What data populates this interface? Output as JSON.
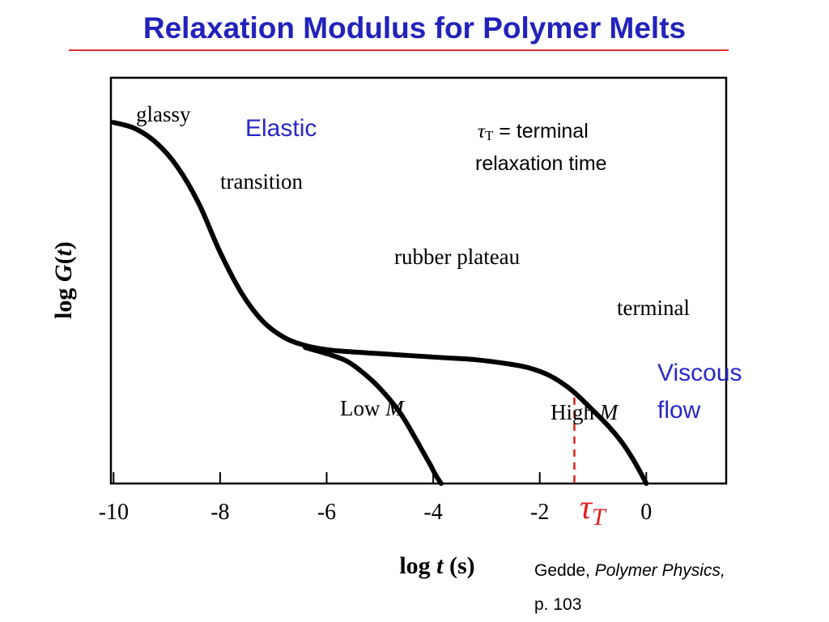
{
  "slide": {
    "title": "Relaxation Modulus for Polymer Melts",
    "title_color": "#2222bb",
    "rule_color": "#e03030",
    "citation": {
      "author": "Gedde, ",
      "book": "Polymer Physics,",
      "page": "p. 103"
    }
  },
  "chart_data": {
    "type": "line",
    "title": "",
    "xlabel": "log t (s)",
    "ylabel": "log G(t)",
    "xlim": [
      -10.05,
      1.5
    ],
    "ylim": [
      0,
      10
    ],
    "x_ticks": [
      -10,
      -8,
      -6,
      -4,
      -2,
      0
    ],
    "x_tick_labels": [
      "-10",
      "-8",
      "-6",
      "-4",
      "-2",
      "0"
    ],
    "series": [
      {
        "name": "High M",
        "x": [
          -10.0,
          -9.6,
          -9.2,
          -8.8,
          -8.4,
          -8.0,
          -7.6,
          -7.2,
          -6.8,
          -6.4,
          -6.0,
          -5.6,
          -5.0,
          -4.4,
          -3.8,
          -3.2,
          -2.6,
          -2.2,
          -1.8,
          -1.4,
          -1.0,
          -0.7,
          -0.45,
          -0.25,
          -0.1,
          0.0
        ],
        "y": [
          8.9,
          8.75,
          8.4,
          7.8,
          6.9,
          5.7,
          4.7,
          4.0,
          3.6,
          3.4,
          3.3,
          3.25,
          3.2,
          3.15,
          3.1,
          3.05,
          2.95,
          2.85,
          2.65,
          2.3,
          1.8,
          1.4,
          1.0,
          0.6,
          0.25,
          0.0
        ]
      },
      {
        "name": "Low M",
        "x": [
          -6.4,
          -6.0,
          -5.6,
          -5.2,
          -4.9,
          -4.6,
          -4.35,
          -4.2,
          -4.05,
          -3.95,
          -3.85
        ],
        "y": [
          3.35,
          3.2,
          3.0,
          2.6,
          2.2,
          1.7,
          1.15,
          0.8,
          0.45,
          0.2,
          0.0
        ]
      }
    ],
    "annotations": {
      "glassy": "glassy",
      "transition": "transition",
      "rubber_plateau": "rubber plateau",
      "terminal": "terminal",
      "low_m": "Low M",
      "high_m": "High M",
      "elastic": "Elastic",
      "viscous": "Viscous",
      "flow": "flow",
      "tau_note_symbol": "τ",
      "tau_note_sub": "T",
      "tau_note_line1": " = terminal",
      "tau_note_line2": "relaxation time",
      "tau_axis_symbol": "τ",
      "tau_axis_sub": "T"
    },
    "terminal_time": -1.35,
    "colors": {
      "curve": "#000000",
      "annotation_blue": "#2828c8",
      "tau_marker": "#e02020"
    }
  }
}
